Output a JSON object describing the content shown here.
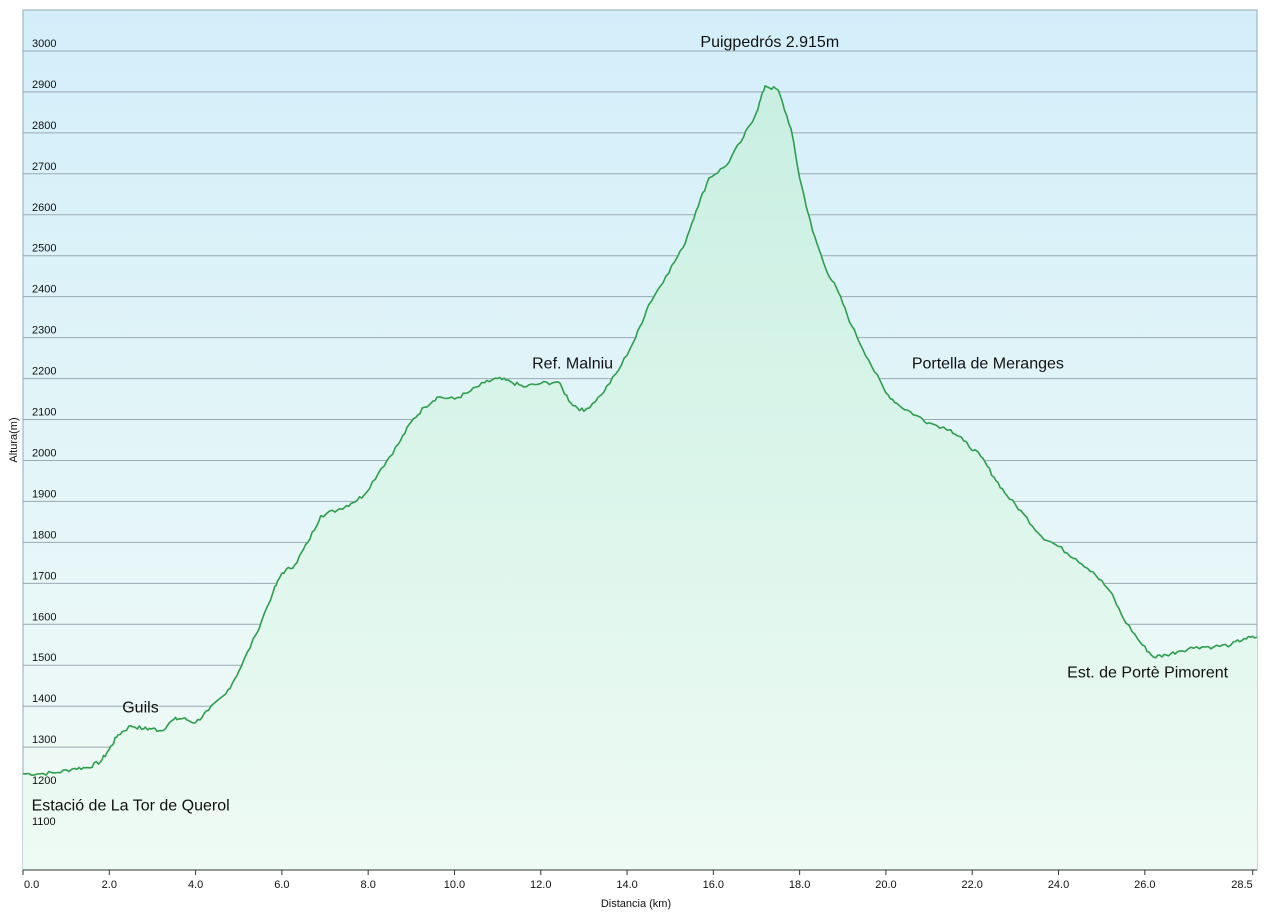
{
  "chart_data": {
    "type": "area",
    "title": "",
    "xlabel": "Distancia  (km)",
    "ylabel": "Altura(m)",
    "xlim": [
      0,
      28.6
    ],
    "ylim": [
      1000,
      3100
    ],
    "x_ticks": [
      0.0,
      2.0,
      4.0,
      6.0,
      8.0,
      10.0,
      12.0,
      14.0,
      16.0,
      18.0,
      20.0,
      22.0,
      24.0,
      26.0,
      28.5
    ],
    "x_tick_labels": [
      "0.0",
      "2.0",
      "4.0",
      "6.0",
      "8.0",
      "10.0",
      "12.0",
      "14.0",
      "16.0",
      "18.0",
      "20.0",
      "22.0",
      "24.0",
      "26.0",
      "28.5"
    ],
    "y_ticks": [
      1100,
      1200,
      1300,
      1400,
      1500,
      1600,
      1700,
      1800,
      1900,
      2000,
      2100,
      2200,
      2300,
      2400,
      2500,
      2600,
      2700,
      2800,
      2900,
      3000
    ],
    "y_tick_labels": [
      "1100",
      "1200",
      "1300",
      "1400",
      "1500",
      "1600",
      "1700",
      "1800",
      "1900",
      "2000",
      "2100",
      "2200",
      "2300",
      "2400",
      "2500",
      "2600",
      "2700",
      "2800",
      "2900",
      "3000"
    ],
    "grid": true,
    "line_color": "#2e9e4c",
    "fill_top_color": "#c9efe2",
    "fill_bottom_color": "#eefbf4",
    "bg_top_color": "#d3eefa",
    "bg_bottom_color": "#f2fbf6",
    "series": [
      {
        "x": [
          0,
          0.4,
          0.8,
          1.2,
          1.5,
          1.8,
          2.0,
          2.2,
          2.5,
          2.8,
          3.0,
          3.2,
          3.5,
          3.7,
          4.0,
          4.3,
          4.7,
          5.0,
          5.4,
          5.8,
          6.0,
          6.3,
          6.6,
          6.9,
          7.3,
          7.6,
          7.9,
          8.3,
          8.7,
          9.0,
          9.3,
          9.6,
          10.0,
          10.3,
          10.7,
          11.0,
          11.3,
          11.6,
          12.0,
          12.4,
          12.7,
          13.0,
          13.4,
          13.8,
          14.2,
          14.5,
          14.9,
          15.3,
          15.6,
          15.9,
          16.3,
          16.7,
          17.0,
          17.2,
          17.5,
          17.8,
          18.0,
          18.3,
          18.6,
          18.9,
          19.2,
          19.6,
          20.0,
          20.3,
          20.7,
          21.0,
          21.5,
          21.8,
          22.2,
          22.5,
          22.8,
          23.2,
          23.6,
          24.0,
          24.4,
          24.8,
          25.2,
          25.5,
          25.9,
          26.2,
          26.5,
          26.8,
          27.2,
          27.6,
          28.0,
          28.3,
          28.6
        ],
        "y": [
          1235,
          1235,
          1238,
          1248,
          1250,
          1265,
          1295,
          1330,
          1352,
          1345,
          1345,
          1340,
          1368,
          1370,
          1360,
          1390,
          1430,
          1485,
          1575,
          1680,
          1725,
          1745,
          1800,
          1865,
          1880,
          1895,
          1915,
          1980,
          2040,
          2095,
          2130,
          2155,
          2150,
          2165,
          2190,
          2200,
          2192,
          2180,
          2188,
          2192,
          2140,
          2120,
          2160,
          2220,
          2300,
          2380,
          2450,
          2520,
          2610,
          2690,
          2720,
          2790,
          2850,
          2915,
          2905,
          2810,
          2690,
          2560,
          2470,
          2410,
          2330,
          2245,
          2165,
          2135,
          2110,
          2092,
          2075,
          2048,
          2010,
          1960,
          1915,
          1868,
          1815,
          1790,
          1760,
          1728,
          1680,
          1615,
          1555,
          1520,
          1525,
          1535,
          1545,
          1545,
          1550,
          1565,
          1568
        ]
      }
    ],
    "annotations": [
      {
        "text": "Estació de La Tor de Querol",
        "x": 0.2,
        "y": 1145
      },
      {
        "text": "Guils",
        "x": 2.3,
        "y": 1385
      },
      {
        "text": "Ref. Malniu",
        "x": 11.8,
        "y": 2225
      },
      {
        "text": "Puigpedrós 2.915m",
        "x": 15.7,
        "y": 3010
      },
      {
        "text": "Portella de Meranges",
        "x": 20.6,
        "y": 2225
      },
      {
        "text": "Est. de Portè Pimorent",
        "x": 24.2,
        "y": 1470
      }
    ]
  }
}
